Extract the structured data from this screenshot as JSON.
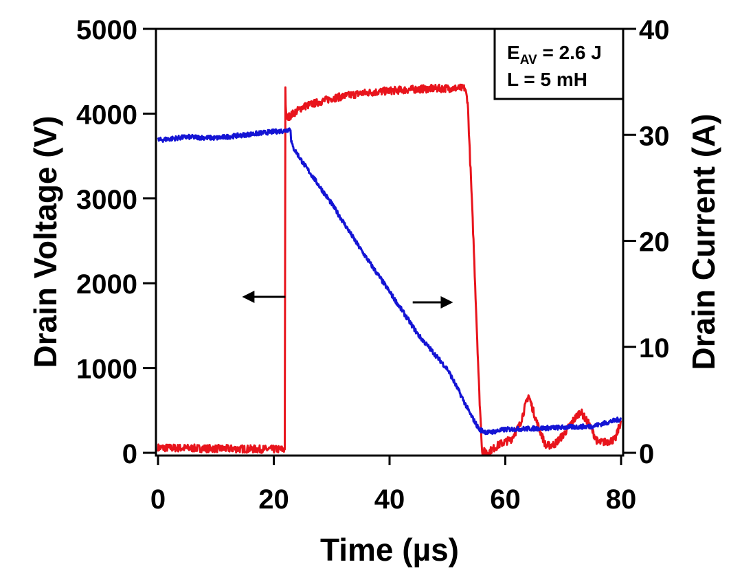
{
  "chart_data": {
    "type": "line",
    "title": "",
    "xlabel": "Time (µs)",
    "ylabel_left": "Drain Voltage (V)",
    "ylabel_right": "Drain Current (A)",
    "xlim": [
      0,
      80
    ],
    "ylim_left": [
      0,
      5000
    ],
    "ylim_right": [
      0,
      40
    ],
    "x_ticks": [
      "0",
      "20",
      "40",
      "60",
      "80"
    ],
    "y_left_ticks": [
      "0",
      "1000",
      "2000",
      "3000",
      "4000",
      "5000"
    ],
    "y_right_ticks": [
      "0",
      "10",
      "20",
      "30",
      "40"
    ],
    "grid": false,
    "annotation": {
      "line1_main": "E",
      "line1_sub": "AV",
      "line1_rest": " = 2.6 J",
      "line2": "L = 5 mH",
      "placement": "top-right"
    },
    "axis_arrows": [
      {
        "target": "left-axis",
        "direction": "left",
        "x": [
          15,
          22
        ],
        "y_voltage": 1840
      },
      {
        "target": "right-axis",
        "direction": "right",
        "x": [
          44,
          50.5
        ],
        "y_current": 14.2
      }
    ],
    "series": [
      {
        "name": "Drain Voltage",
        "axis": "left",
        "color": "#e8141c",
        "x": [
          0,
          10,
          21.9,
          22.0,
          22.05,
          22.15,
          22.25,
          22.5,
          25,
          30,
          35,
          40,
          45,
          50,
          53.0,
          53.5,
          54.5,
          55.5,
          56.0,
          57,
          59,
          61,
          62.5,
          64.0,
          65.5,
          67,
          68.5,
          70,
          71.5,
          73.0,
          74.5,
          76,
          77.5,
          79,
          80
        ],
        "y": [
          60,
          50,
          40,
          4310,
          4120,
          3960,
          3950,
          3960,
          4080,
          4180,
          4240,
          4270,
          4290,
          4300,
          4300,
          4150,
          2500,
          700,
          20,
          5,
          100,
          160,
          330,
          680,
          350,
          80,
          100,
          210,
          360,
          490,
          330,
          120,
          130,
          160,
          380
        ]
      },
      {
        "name": "Drain Current",
        "axis": "right",
        "color": "#1414d4",
        "x": [
          0,
          5,
          10,
          15,
          20,
          22,
          22.9,
          23.0,
          23.3,
          23.6,
          25,
          30,
          35,
          40,
          45,
          50,
          52,
          54,
          55.5,
          57,
          60,
          65,
          70,
          75,
          80
        ],
        "y": [
          29.5,
          29.8,
          29.7,
          30.0,
          30.3,
          30.4,
          30.6,
          29.5,
          28.8,
          28.6,
          27.4,
          23.5,
          19.2,
          15.2,
          11.1,
          7.9,
          5.8,
          3.6,
          2.2,
          1.9,
          2.2,
          2.3,
          2.4,
          2.5,
          3.2
        ]
      }
    ]
  },
  "colors": {
    "voltage": "#e8141c",
    "current": "#1414d4",
    "axis": "#000000",
    "background": "#ffffff"
  }
}
